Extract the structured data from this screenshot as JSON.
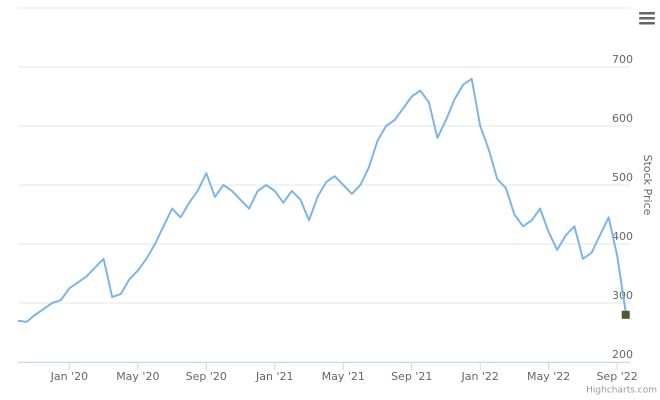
{
  "chart_data": {
    "type": "line",
    "categories": [
      null,
      null,
      null,
      null,
      null,
      null,
      "Jan '20",
      null,
      null,
      null,
      null,
      null,
      null,
      null,
      "May '20",
      null,
      null,
      null,
      null,
      null,
      null,
      null,
      "Sep '20",
      null,
      null,
      null,
      null,
      null,
      null,
      null,
      "Jan '21",
      null,
      null,
      null,
      null,
      null,
      null,
      null,
      "May '21",
      null,
      null,
      null,
      null,
      null,
      null,
      null,
      "Sep '21",
      null,
      null,
      null,
      null,
      null,
      null,
      null,
      "Jan '22",
      null,
      null,
      null,
      null,
      null,
      null,
      null,
      "May '22",
      null,
      null,
      null,
      null,
      null,
      null,
      null,
      "Sep '22",
      null
    ],
    "series": [
      {
        "color": "#7cb5ec",
        "values": [
          270,
          268,
          280,
          290,
          300,
          305,
          325,
          335,
          345,
          360,
          375,
          310,
          315,
          340,
          355,
          375,
          400,
          430,
          460,
          445,
          470,
          490,
          520,
          480,
          500,
          490,
          475,
          460,
          490,
          500,
          490,
          470,
          490,
          475,
          440,
          480,
          505,
          515,
          500,
          485,
          500,
          530,
          575,
          600,
          610,
          630,
          650,
          660,
          640,
          580,
          610,
          645,
          670,
          680,
          600,
          560,
          510,
          495,
          450,
          430,
          440,
          460,
          420,
          390,
          415,
          430,
          375,
          385,
          415,
          445,
          380,
          285
        ]
      },
      {
        "color": "#4b5b2a",
        "values": [
          null,
          null,
          null,
          null,
          null,
          null,
          null,
          null,
          null,
          null,
          null,
          null,
          null,
          null,
          null,
          null,
          null,
          null,
          null,
          null,
          null,
          null,
          null,
          null,
          null,
          null,
          null,
          null,
          null,
          null,
          null,
          null,
          null,
          null,
          null,
          null,
          null,
          null,
          null,
          null,
          null,
          null,
          null,
          null,
          null,
          null,
          null,
          null,
          null,
          null,
          null,
          null,
          null,
          null,
          null,
          null,
          null,
          null,
          null,
          null,
          null,
          null,
          null,
          null,
          null,
          null,
          null,
          null,
          null,
          null,
          null,
          280
        ]
      }
    ],
    "y_axis_title": "Stock Price",
    "credits": "Highcharts.com",
    "ylim": [
      200,
      800
    ],
    "yticks": [
      200,
      300,
      400,
      500,
      600,
      700
    ],
    "grid": true
  }
}
